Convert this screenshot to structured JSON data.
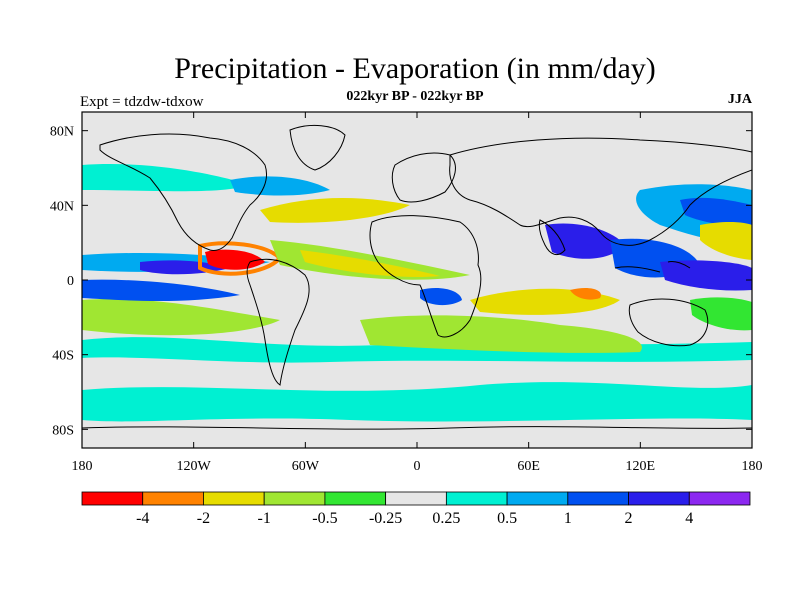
{
  "title": "Precipitation - Evaporation (in mm/day)",
  "subtitle": "022kyr BP - 022kyr BP",
  "left_label": "Expt = tdzdw-tdxow",
  "right_label": "JJA",
  "map": {
    "land_color": "#e6e6e6",
    "y_ticks": [
      "80N",
      "40N",
      "0",
      "40S",
      "80S"
    ],
    "x_ticks": [
      "180",
      "120W",
      "60W",
      "0",
      "60E",
      "120E",
      "180"
    ]
  },
  "colorbar": {
    "colors": [
      "#ff0000",
      "#ff8200",
      "#e6dc00",
      "#a0e632",
      "#32e632",
      "#e6e6e6",
      "#00f0d2",
      "#00aaf0",
      "#0050f0",
      "#2a1eea",
      "#8c28f0"
    ],
    "labels": [
      "-4",
      "-2",
      "-1",
      "-0.5",
      "-0.25",
      "0.25",
      "0.5",
      "1",
      "2",
      "4"
    ]
  }
}
